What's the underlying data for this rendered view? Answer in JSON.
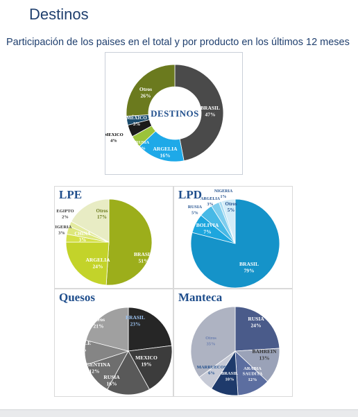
{
  "header": {
    "title": "Destinos",
    "subtitle": "Participación de los paises en el total y por producto en los últimos 12 meses"
  },
  "chart_data": [
    {
      "id": "destinos",
      "type": "pie",
      "variant": "donut",
      "center_label": "DESTINOS",
      "title": "",
      "slices": [
        {
          "name": "BRASIL",
          "pct": "47%",
          "value": 47,
          "color": "#4a4a4a"
        },
        {
          "name": "ARGELIA",
          "pct": "16%",
          "value": 16,
          "color": "#1ea9e8"
        },
        {
          "name": "RUSIA",
          "pct": "4%",
          "value": 4,
          "color": "#9bc33a"
        },
        {
          "name": "MEXICO",
          "pct": "4%",
          "value": 4,
          "color": "#1a1a1a"
        },
        {
          "name": "MÉXICO",
          "pct": "3%",
          "value": 3,
          "color": "#1c4d6e"
        },
        {
          "name": "Otros",
          "pct": "26%",
          "value": 26,
          "color": "#6b7a1e"
        }
      ]
    },
    {
      "id": "lpe",
      "type": "pie",
      "title": "LPE",
      "slices": [
        {
          "name": "BRASIL",
          "pct": "51%",
          "value": 51,
          "color": "#9cae1b"
        },
        {
          "name": "ARGELIA",
          "pct": "24%",
          "value": 24,
          "color": "#c3d32a"
        },
        {
          "name": "CHINA",
          "pct": "3%",
          "value": 3,
          "color": "#d4e047"
        },
        {
          "name": "NIGERIA",
          "pct": "3%",
          "value": 3,
          "color": "#dde77c"
        },
        {
          "name": "EGIPTO",
          "pct": "2%",
          "value": 2,
          "color": "#e4eba0"
        },
        {
          "name": "Otros",
          "pct": "17%",
          "value": 17,
          "color": "#e8ecc4"
        }
      ]
    },
    {
      "id": "lpd",
      "type": "pie",
      "title": "LPD",
      "slices": [
        {
          "name": "BRASIL",
          "pct": "79%",
          "value": 79,
          "color": "#1593c9"
        },
        {
          "name": "BOLIVIA",
          "pct": "7%",
          "value": 7,
          "color": "#1da6de"
        },
        {
          "name": "RUSIA",
          "pct": "5%",
          "value": 5,
          "color": "#47b9e6"
        },
        {
          "name": "ARGELIA",
          "pct": "3%",
          "value": 3,
          "color": "#7dcdee"
        },
        {
          "name": "NIGERIA",
          "pct": "1%",
          "value": 1,
          "color": "#a9dcf2"
        },
        {
          "name": "Otros",
          "pct": "5%",
          "value": 5,
          "color": "#d3ecf8"
        }
      ]
    },
    {
      "id": "quesos",
      "type": "pie",
      "title": "Quesos",
      "slices": [
        {
          "name": "BRASIL",
          "pct": "23%",
          "value": 23,
          "color": "#262626"
        },
        {
          "name": "MEXICO",
          "pct": "19%",
          "value": 19,
          "color": "#3c3c3c"
        },
        {
          "name": "RUSIA",
          "pct": "16%",
          "value": 16,
          "color": "#595959"
        },
        {
          "name": "ARGENTINA",
          "pct": "12%",
          "value": 12,
          "color": "#6e6e6e"
        },
        {
          "name": "CHILE",
          "pct": "9%",
          "value": 9,
          "color": "#858585"
        },
        {
          "name": "Otros",
          "pct": "21%",
          "value": 21,
          "color": "#a0a0a0"
        }
      ]
    },
    {
      "id": "manteca",
      "type": "pie",
      "title": "Manteca",
      "slices": [
        {
          "name": "RUSIA",
          "pct": "24%",
          "value": 24,
          "color": "#4a5b8a"
        },
        {
          "name": "BAHREIN",
          "pct": "13%",
          "value": 13,
          "color": "#9aa2b8"
        },
        {
          "name": "ARABIA SAUDITA",
          "pct": "12%",
          "value": 12,
          "color": "#5c6ea0"
        },
        {
          "name": "BRASIL",
          "pct": "10%",
          "value": 10,
          "color": "#1e3a6b"
        },
        {
          "name": "MARRUECOS",
          "pct": "6%",
          "value": 6,
          "color": "#c6cad6"
        },
        {
          "name": "Otros",
          "pct": "35%",
          "value": 35,
          "color": "#aeb3c2"
        }
      ]
    }
  ]
}
